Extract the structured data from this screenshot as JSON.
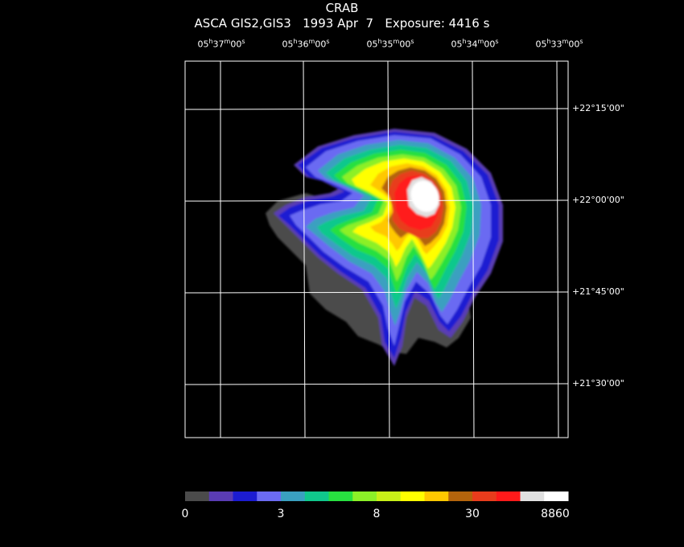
{
  "header": {
    "title": "CRAB",
    "subtitle": "ASCA GIS2,GIS3   1993 Apr  7   Exposure: 4416 s"
  },
  "ra_ticks": [
    {
      "h": "05",
      "m": "37",
      "s": "00"
    },
    {
      "h": "05",
      "m": "36",
      "s": "00"
    },
    {
      "h": "05",
      "m": "35",
      "s": "00"
    },
    {
      "h": "05",
      "m": "34",
      "s": "00"
    },
    {
      "h": "05",
      "m": "33",
      "s": "00"
    }
  ],
  "dec_ticks": [
    "+22°15'00\"",
    "+22°00'00\"",
    "+21°45'00\"",
    "+21°30'00\""
  ],
  "colorbar": {
    "colors": [
      "#4b4b4b",
      "#5a3cb4",
      "#1c1cd2",
      "#6b6bf2",
      "#3aa0c0",
      "#10c88c",
      "#28e040",
      "#8cf028",
      "#c8f018",
      "#ffff00",
      "#ffc800",
      "#b4640c",
      "#e83c1c",
      "#ff1a1a",
      "#e0e0e0",
      "#ffffff"
    ],
    "labels": [
      "0",
      "3",
      "8",
      "30",
      "8860"
    ]
  }
}
